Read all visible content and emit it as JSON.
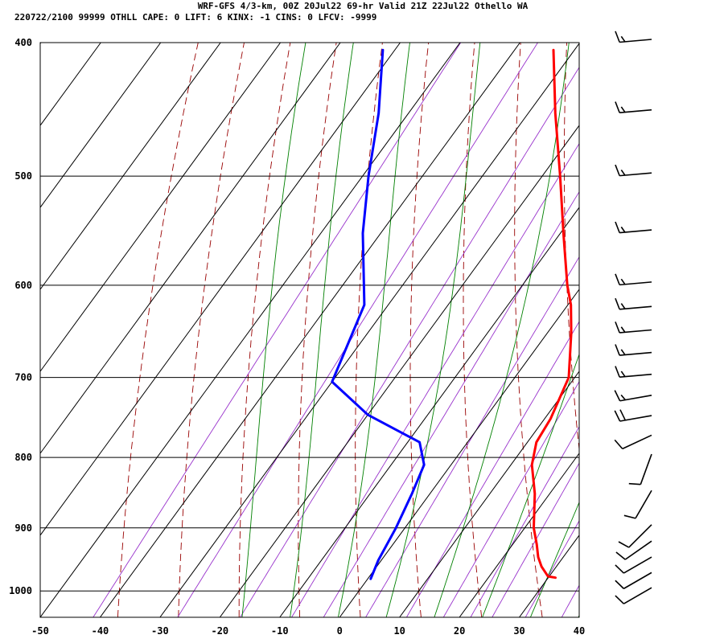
{
  "header": {
    "line1": "WRF-GFS 4/3-km, 00Z 20Jul22 69-hr Valid 21Z 22Jul22 Othello WA",
    "line2": "220722/2100 99999  OTHLL   CAPE:     0 LIFT:     6 KINX:    -1 CINS:     0 LFCV: -9999"
  },
  "chart_data": {
    "type": "line",
    "subtype": "skew-t log-p sounding",
    "x_ticks": [
      -50,
      -40,
      -30,
      -20,
      -10,
      0,
      10,
      20,
      30,
      40
    ],
    "y_ticks": [
      400,
      500,
      600,
      700,
      800,
      900,
      1000
    ],
    "pressure_range": [
      1045,
      400
    ],
    "grid": true,
    "colors": {
      "temperature": "#ff0000",
      "dewpoint": "#0000ff",
      "dry_adiabat": "#990000",
      "mixing_ratio": "#9933cc",
      "moist_adiabat": "#008000",
      "grid": "#000000"
    },
    "series": [
      {
        "key": "temperature",
        "points": [
          {
            "p": 978,
            "t": 31.2
          },
          {
            "p": 976,
            "t": 29.8
          },
          {
            "p": 960,
            "t": 27.5
          },
          {
            "p": 945,
            "t": 25.8
          },
          {
            "p": 925,
            "t": 24.0
          },
          {
            "p": 900,
            "t": 21.5
          },
          {
            "p": 850,
            "t": 17.5
          },
          {
            "p": 810,
            "t": 13.5
          },
          {
            "p": 780,
            "t": 11.5
          },
          {
            "p": 750,
            "t": 11.0
          },
          {
            "p": 700,
            "t": 9.0
          },
          {
            "p": 650,
            "t": 4.0
          },
          {
            "p": 620,
            "t": 0.5
          },
          {
            "p": 600,
            "t": -2.5
          },
          {
            "p": 550,
            "t": -9.5
          },
          {
            "p": 500,
            "t": -17.0
          },
          {
            "p": 450,
            "t": -25.5
          },
          {
            "p": 405,
            "t": -33.5
          }
        ]
      },
      {
        "key": "dewpoint",
        "points": [
          {
            "p": 980,
            "t": 0.5
          },
          {
            "p": 950,
            "t": -0.5
          },
          {
            "p": 900,
            "t": -1.5
          },
          {
            "p": 850,
            "t": -3.0
          },
          {
            "p": 810,
            "t": -4.5
          },
          {
            "p": 780,
            "t": -8.0
          },
          {
            "p": 745,
            "t": -20.0
          },
          {
            "p": 705,
            "t": -30.0
          },
          {
            "p": 620,
            "t": -34.0
          },
          {
            "p": 550,
            "t": -43.0
          },
          {
            "p": 500,
            "t": -49.0
          },
          {
            "p": 450,
            "t": -55.0
          },
          {
            "p": 405,
            "t": -62.0
          }
        ]
      }
    ],
    "wind_barbs": [
      {
        "p": 1000,
        "dir": 240,
        "spd": 10
      },
      {
        "p": 975,
        "dir": 240,
        "spd": 10
      },
      {
        "p": 950,
        "dir": 240,
        "spd": 10
      },
      {
        "p": 925,
        "dir": 235,
        "spd": 10
      },
      {
        "p": 900,
        "dir": 225,
        "spd": 10
      },
      {
        "p": 850,
        "dir": 210,
        "spd": 10
      },
      {
        "p": 800,
        "dir": 200,
        "spd": 10
      },
      {
        "p": 775,
        "dir": 245,
        "spd": 10
      },
      {
        "p": 750,
        "dir": 260,
        "spd": 20
      },
      {
        "p": 725,
        "dir": 260,
        "spd": 15
      },
      {
        "p": 700,
        "dir": 265,
        "spd": 15
      },
      {
        "p": 675,
        "dir": 265,
        "spd": 15
      },
      {
        "p": 650,
        "dir": 265,
        "spd": 15
      },
      {
        "p": 625,
        "dir": 265,
        "spd": 15
      },
      {
        "p": 600,
        "dir": 265,
        "spd": 15
      },
      {
        "p": 550,
        "dir": 265,
        "spd": 15
      },
      {
        "p": 500,
        "dir": 265,
        "spd": 15
      },
      {
        "p": 450,
        "dir": 265,
        "spd": 15
      },
      {
        "p": 400,
        "dir": 265,
        "spd": 15
      }
    ]
  }
}
